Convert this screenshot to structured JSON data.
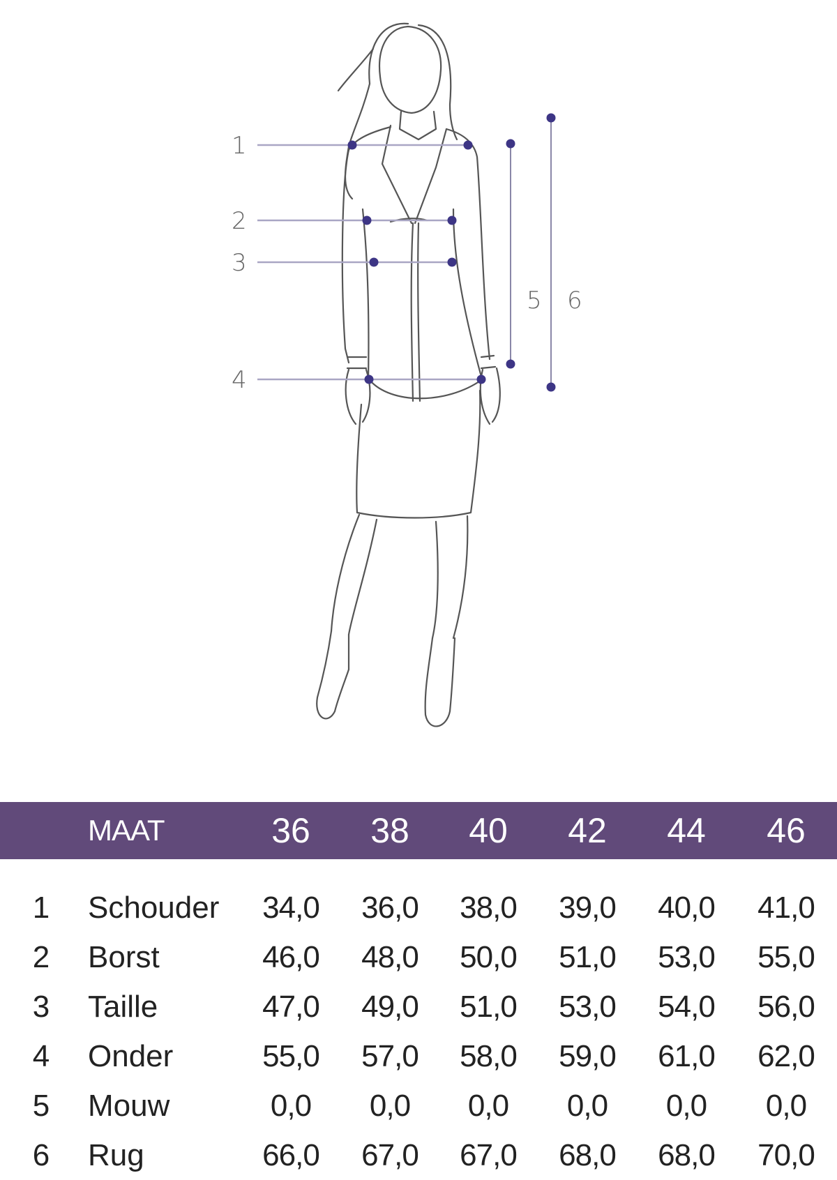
{
  "figure": {
    "labels": [
      "1",
      "2",
      "3",
      "4",
      "5",
      "6"
    ],
    "accent_color": "#3d3585"
  },
  "table": {
    "header_color": "#614a7a",
    "header_label": "MAAT",
    "sizes": [
      "36",
      "38",
      "40",
      "42",
      "44",
      "46"
    ],
    "rows": [
      {
        "num": "1",
        "label": "Schouder",
        "values": [
          "34,0",
          "36,0",
          "38,0",
          "39,0",
          "40,0",
          "41,0"
        ]
      },
      {
        "num": "2",
        "label": "Borst",
        "values": [
          "46,0",
          "48,0",
          "50,0",
          "51,0",
          "53,0",
          "55,0"
        ]
      },
      {
        "num": "3",
        "label": "Taille",
        "values": [
          "47,0",
          "49,0",
          "51,0",
          "53,0",
          "54,0",
          "56,0"
        ]
      },
      {
        "num": "4",
        "label": "Onder",
        "values": [
          "55,0",
          "57,0",
          "58,0",
          "59,0",
          "61,0",
          "62,0"
        ]
      },
      {
        "num": "5",
        "label": "Mouw",
        "values": [
          "0,0",
          "0,0",
          "0,0",
          "0,0",
          "0,0",
          "0,0"
        ]
      },
      {
        "num": "6",
        "label": "Rug",
        "values": [
          "66,0",
          "67,0",
          "67,0",
          "68,0",
          "68,0",
          "70,0"
        ]
      }
    ]
  }
}
